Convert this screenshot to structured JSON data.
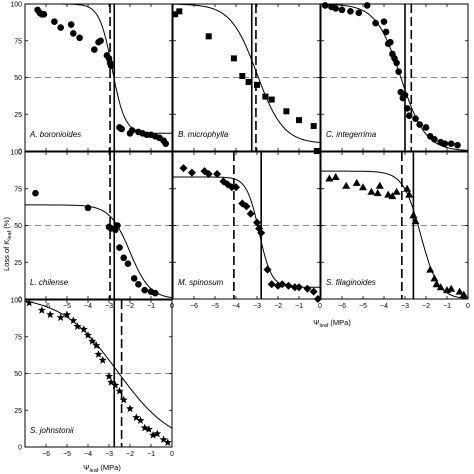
{
  "figure": {
    "ylabel": "Loss of K",
    "ylabel_sub": "leaf",
    "ylabel_unit": " (%)",
    "xlabel": "Ψ",
    "xlabel_sub": "leaf",
    "xlabel_unit": " (MPa)"
  },
  "chart_data": [
    {
      "type": "scatter",
      "species": "A. boronioides",
      "marker": "circle",
      "xlim": [
        -7,
        0
      ],
      "ylim": [
        0,
        100
      ],
      "threshold_solid": -2.75,
      "threshold_dashed": -2.95,
      "p50_line": 50,
      "curve": {
        "a": 3.3,
        "b": -2.85,
        "top": 100,
        "bottom": 12
      },
      "points": [
        [
          -6.4,
          96
        ],
        [
          -6.3,
          94
        ],
        [
          -6.2,
          93
        ],
        [
          -6.1,
          93
        ],
        [
          -5.6,
          88
        ],
        [
          -5.3,
          84
        ],
        [
          -4.8,
          86
        ],
        [
          -4.7,
          80
        ],
        [
          -4.4,
          77
        ],
        [
          -3.7,
          69
        ],
        [
          -3.5,
          74
        ],
        [
          -3.4,
          75
        ],
        [
          -3.1,
          65
        ],
        [
          -3.0,
          63
        ],
        [
          -2.95,
          60
        ],
        [
          -2.9,
          58
        ],
        [
          -2.5,
          16
        ],
        [
          -2.4,
          15
        ],
        [
          -2.0,
          12
        ],
        [
          -1.9,
          14
        ],
        [
          -1.6,
          13
        ],
        [
          -1.4,
          12
        ],
        [
          -1.2,
          11
        ],
        [
          -1.0,
          11
        ],
        [
          -0.8,
          10
        ],
        [
          -0.6,
          9
        ],
        [
          -0.4,
          7
        ],
        [
          -0.3,
          5
        ]
      ]
    },
    {
      "type": "scatter",
      "species": "B. microphylla",
      "marker": "square",
      "xlim": [
        -7,
        0
      ],
      "ylim": [
        0,
        100
      ],
      "threshold_solid": -3.25,
      "threshold_dashed": -3.05,
      "p50_line": 50,
      "curve": {
        "a": 1.6,
        "b": -3.0,
        "top": 100,
        "bottom": 5
      },
      "points": [
        [
          -6.9,
          93
        ],
        [
          -6.7,
          95
        ],
        [
          -5.3,
          78
        ],
        [
          -4.1,
          63
        ],
        [
          -3.7,
          51
        ],
        [
          -3.4,
          47
        ],
        [
          -3.0,
          45
        ],
        [
          -2.6,
          37
        ],
        [
          -2.3,
          35
        ],
        [
          -1.6,
          27
        ],
        [
          -1.0,
          21
        ],
        [
          -0.3,
          17
        ],
        [
          -0.15,
          0
        ]
      ]
    },
    {
      "type": "scatter",
      "species": "C. integerrima",
      "marker": "circle",
      "xlim": [
        -7,
        0
      ],
      "ylim": [
        0,
        100
      ],
      "threshold_solid": -3.0,
      "threshold_dashed": -2.7,
      "p50_line": 50,
      "curve": {
        "a": 1.7,
        "b": -3.2,
        "top": 100,
        "bottom": 0
      },
      "points": [
        [
          -6.8,
          99
        ],
        [
          -6.5,
          98
        ],
        [
          -6.3,
          97
        ],
        [
          -6.0,
          96
        ],
        [
          -5.6,
          95
        ],
        [
          -5.2,
          94
        ],
        [
          -4.8,
          99
        ],
        [
          -4.4,
          87
        ],
        [
          -4.0,
          88
        ],
        [
          -3.9,
          81
        ],
        [
          -3.8,
          73
        ],
        [
          -3.7,
          74
        ],
        [
          -3.6,
          66
        ],
        [
          -3.5,
          63
        ],
        [
          -3.4,
          60
        ],
        [
          -3.3,
          54
        ],
        [
          -3.2,
          40
        ],
        [
          -3.1,
          36
        ],
        [
          -3.0,
          38
        ],
        [
          -2.9,
          29
        ],
        [
          -2.8,
          24
        ],
        [
          -2.5,
          22
        ],
        [
          -2.3,
          18
        ],
        [
          -2.0,
          16
        ],
        [
          -1.8,
          10
        ],
        [
          -1.6,
          8
        ],
        [
          -1.3,
          6
        ],
        [
          -1.1,
          5
        ],
        [
          -0.8,
          5
        ],
        [
          -0.5,
          4
        ]
      ]
    },
    {
      "type": "scatter",
      "species": "L. chilense",
      "marker": "circle",
      "xlim": [
        -7,
        0
      ],
      "ylim": [
        0,
        100
      ],
      "threshold_solid": -2.75,
      "threshold_dashed": -2.95,
      "p50_line": 50,
      "curve": {
        "a": 2.1,
        "b": -2.0,
        "top": 64,
        "bottom": 0
      },
      "points": [
        [
          -6.5,
          72
        ],
        [
          -4.0,
          62
        ],
        [
          -3.0,
          49
        ],
        [
          -2.9,
          48
        ],
        [
          -2.7,
          47
        ],
        [
          -2.6,
          50
        ],
        [
          -2.5,
          35
        ],
        [
          -2.3,
          28
        ],
        [
          -2.1,
          24
        ],
        [
          -1.8,
          14
        ],
        [
          -1.6,
          10
        ],
        [
          -1.3,
          6
        ],
        [
          -1.0,
          5
        ],
        [
          -0.8,
          4
        ]
      ]
    },
    {
      "type": "scatter",
      "species": "M. spinosum",
      "marker": "diamond",
      "xlim": [
        -7,
        0
      ],
      "ylim": [
        0,
        100
      ],
      "threshold_solid": -2.8,
      "threshold_dashed": -4.1,
      "p50_line": 50,
      "curve": {
        "a": 3.4,
        "b": -2.9,
        "top": 83,
        "bottom": 8
      },
      "points": [
        [
          -6.5,
          89
        ],
        [
          -6.1,
          86
        ],
        [
          -5.5,
          87
        ],
        [
          -5.3,
          85
        ],
        [
          -4.9,
          85
        ],
        [
          -4.6,
          80
        ],
        [
          -4.4,
          78
        ],
        [
          -4.2,
          76
        ],
        [
          -4.0,
          76
        ],
        [
          -3.7,
          65
        ],
        [
          -3.5,
          63
        ],
        [
          -3.3,
          58
        ],
        [
          -3.0,
          52
        ],
        [
          -2.9,
          48
        ],
        [
          -2.8,
          45
        ],
        [
          -2.5,
          20
        ],
        [
          -2.3,
          10
        ],
        [
          -2.0,
          9
        ],
        [
          -1.8,
          10
        ],
        [
          -1.5,
          9
        ],
        [
          -1.2,
          8
        ],
        [
          -1.0,
          8
        ],
        [
          -0.6,
          7
        ],
        [
          -0.3,
          5
        ],
        [
          -0.1,
          0
        ]
      ]
    },
    {
      "type": "scatter",
      "species": "S. filaginoides",
      "marker": "triangle",
      "xlim": [
        -7,
        0
      ],
      "ylim": [
        0,
        100
      ],
      "threshold_solid": -2.6,
      "threshold_dashed": -3.15,
      "p50_line": 50,
      "curve": {
        "a": 2.4,
        "b": -2.25,
        "top": 87,
        "bottom": 0
      },
      "points": [
        [
          -6.6,
          82
        ],
        [
          -6.3,
          83
        ],
        [
          -5.8,
          77
        ],
        [
          -5.3,
          79
        ],
        [
          -5.0,
          76
        ],
        [
          -4.6,
          73
        ],
        [
          -4.3,
          72
        ],
        [
          -4.2,
          77
        ],
        [
          -3.8,
          71
        ],
        [
          -3.6,
          70
        ],
        [
          -3.4,
          73
        ],
        [
          -2.9,
          75
        ],
        [
          -2.8,
          71
        ],
        [
          -2.6,
          57
        ],
        [
          -2.5,
          53
        ],
        [
          -1.8,
          20
        ],
        [
          -1.6,
          14
        ],
        [
          -1.5,
          10
        ],
        [
          -1.3,
          8
        ],
        [
          -1.0,
          6
        ],
        [
          -0.8,
          7
        ],
        [
          -0.4,
          5
        ],
        [
          -0.2,
          3
        ]
      ]
    },
    {
      "type": "scatter",
      "species": "S. johnstonii",
      "marker": "star",
      "xlim": [
        -7,
        0
      ],
      "ylim": [
        0,
        100
      ],
      "threshold_solid": -2.75,
      "threshold_dashed": -2.4,
      "p50_line": 50,
      "curve": {
        "a": 0.75,
        "b": -2.6,
        "top": 103,
        "bottom": 0
      },
      "points": [
        [
          -6.8,
          98
        ],
        [
          -6.2,
          93
        ],
        [
          -5.8,
          90
        ],
        [
          -5.3,
          88
        ],
        [
          -5.0,
          90
        ],
        [
          -4.7,
          86
        ],
        [
          -4.5,
          82
        ],
        [
          -4.2,
          80
        ],
        [
          -4.0,
          76
        ],
        [
          -3.8,
          72
        ],
        [
          -3.6,
          69
        ],
        [
          -3.5,
          63
        ],
        [
          -3.3,
          59
        ],
        [
          -3.0,
          48
        ],
        [
          -2.9,
          44
        ],
        [
          -2.7,
          42
        ],
        [
          -2.5,
          38
        ],
        [
          -2.3,
          32
        ],
        [
          -2.0,
          26
        ],
        [
          -1.7,
          20
        ],
        [
          -1.5,
          18
        ],
        [
          -1.3,
          13
        ],
        [
          -1.1,
          12
        ],
        [
          -0.9,
          8
        ],
        [
          -0.7,
          9
        ],
        [
          -0.4,
          5
        ],
        [
          -0.2,
          3
        ]
      ]
    }
  ]
}
